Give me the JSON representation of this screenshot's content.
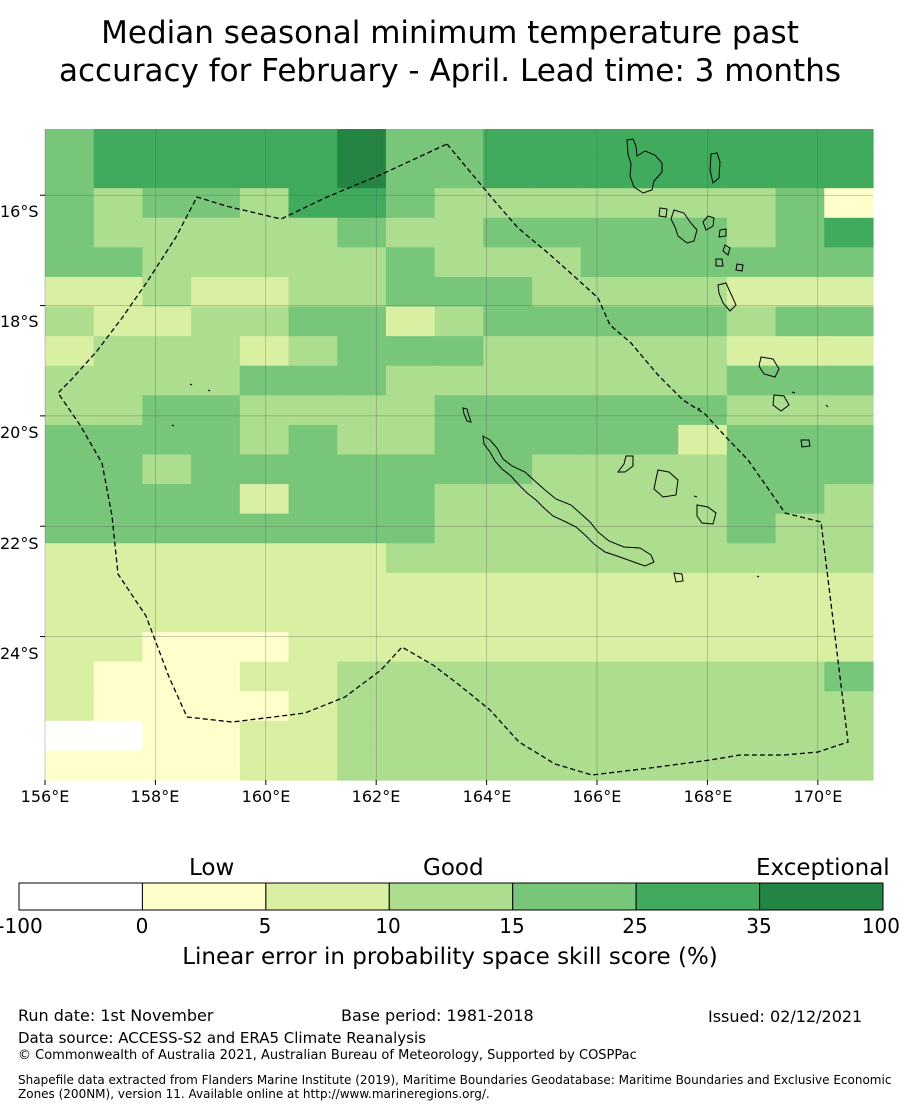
{
  "title": {
    "line1": "Median seasonal minimum temperature past",
    "line2": "accuracy for February - April. Lead time: 3 months"
  },
  "map": {
    "lat_labels": [
      "16°S",
      "18°S",
      "20°S",
      "22°S",
      "24°S"
    ],
    "lon_labels": [
      "156°E",
      "158°E",
      "160°E",
      "162°E",
      "164°E",
      "166°E",
      "168°E",
      "170°E"
    ],
    "lon_range": [
      156,
      171
    ],
    "lat_range": [
      -14.8,
      -26.6
    ],
    "grid_rows": [
      "45555564455555555",
      "45555564455555555",
      "43443554333333341",
      "43333343344444345",
      "44333334333444444",
      "22322334443333222",
      "32233442344444344",
      "23332344433333222",
      "33334443333333444",
      "33443333444444333",
      "44443433444442444",
      "44344444443333444",
      "44442444333333443",
      "44444444333333433",
      "22222223333333333",
      "22222222222222222",
      "22222222222222222",
      "22111222222222222",
      "21112233333333334",
      "21111233333333333",
      "00112233333333333",
      "11112233333333333"
    ]
  },
  "legend": {
    "categories": [
      "Low",
      "Good",
      "Exceptional"
    ],
    "colors": [
      "#ffffff",
      "#ffffcc",
      "#d9f0a3",
      "#addd8e",
      "#78c679",
      "#41ab5d",
      "#238443"
    ],
    "ticks": [
      "-100",
      "0",
      "5",
      "10",
      "15",
      "25",
      "35",
      "100"
    ],
    "title": "Linear error in probability space skill score (%)"
  },
  "footer": {
    "run_date": "Run date: 1st November",
    "base_period": "Base period: 1981-2018",
    "issued": "Issued: 02/12/2021",
    "data_source": "Data source: ACCESS-S2 and ERA5 Climate Reanalysis",
    "copyright": "© Commonwealth of Australia 2021, Australian Bureau of Meteorology, Supported by COSPPac",
    "shapefile_line1": "Shapefile data extracted from Flanders Marine Institute (2019), Maritime Boundaries Geodatabase: Maritime Boundaries and Exclusive Economic",
    "shapefile_line2": "Zones (200NM), version 11. Available online at http://www.marineregions.org/."
  }
}
